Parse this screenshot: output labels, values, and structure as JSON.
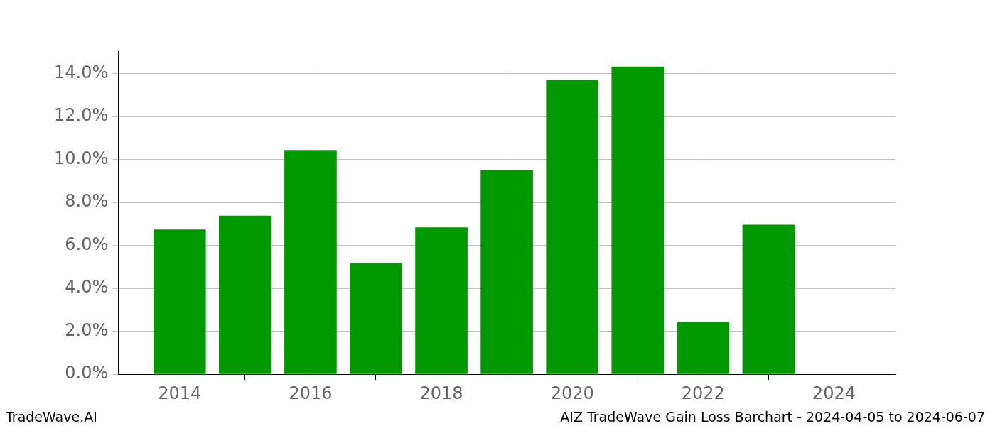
{
  "chart_data": {
    "type": "bar",
    "x": [
      2014,
      2015,
      2016,
      2017,
      2018,
      2019,
      2020,
      2021,
      2022,
      2023,
      2024
    ],
    "values": [
      6.74,
      7.39,
      10.45,
      5.18,
      6.84,
      9.51,
      13.71,
      14.33,
      2.44,
      6.97,
      0
    ],
    "color": "#009900",
    "xlim": [
      2013.06,
      2024.94
    ],
    "xticks": [
      2014,
      2016,
      2018,
      2020,
      2022,
      2024
    ],
    "ylim": [
      0,
      15.05
    ],
    "yticks": [
      {
        "value": 0,
        "label": "0.0%"
      },
      {
        "value": 2,
        "label": "2.0%"
      },
      {
        "value": 4,
        "label": "4.0%"
      },
      {
        "value": 6,
        "label": "6.0%"
      },
      {
        "value": 8,
        "label": "8.0%"
      },
      {
        "value": 10,
        "label": "10.0%"
      },
      {
        "value": 12,
        "label": "12.0%"
      },
      {
        "value": 14,
        "label": "14.0%"
      }
    ],
    "grid": true,
    "annotations": [
      "TradeWave.AI",
      "AIZ TradeWave Gain Loss Barchart - 2024-04-05 to 2024-06-07"
    ]
  }
}
